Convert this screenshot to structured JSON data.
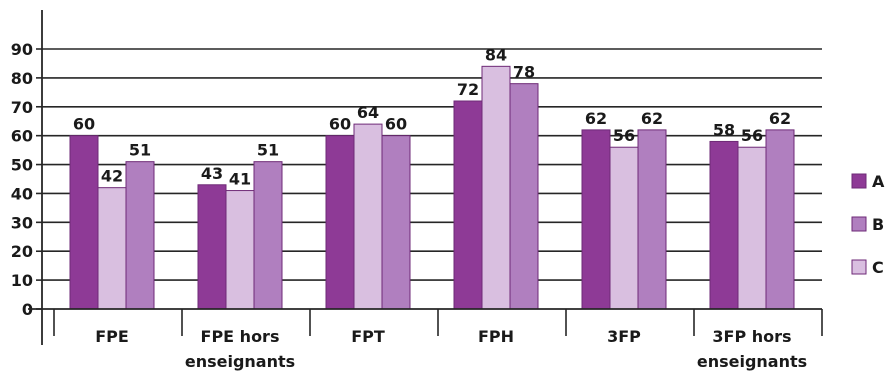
{
  "chart_data": {
    "type": "bar",
    "title": "",
    "xlabel": "",
    "ylabel": "",
    "ylim": [
      0,
      90
    ],
    "yticks": [
      0,
      10,
      20,
      30,
      40,
      50,
      60,
      70,
      80,
      90
    ],
    "grid": true,
    "legend_position": "right",
    "categories": [
      [
        "FPE"
      ],
      [
        "FPE hors",
        "enseignants"
      ],
      [
        "FPT"
      ],
      [
        "FPH"
      ],
      [
        "3FP"
      ],
      [
        "3FP hors",
        "enseignants"
      ]
    ],
    "bar_order": [
      "A",
      "C",
      "B"
    ],
    "legend_order": [
      "A",
      "B",
      "C"
    ],
    "series": [
      {
        "name": "A",
        "color": "#8e3a96",
        "values": [
          60,
          43,
          60,
          72,
          62,
          58
        ]
      },
      {
        "name": "B",
        "color": "#b07fbf",
        "values": [
          51,
          51,
          60,
          78,
          62,
          62
        ]
      },
      {
        "name": "C",
        "color": "#d9bfe0",
        "values": [
          42,
          41,
          64,
          84,
          56,
          56
        ]
      }
    ]
  }
}
